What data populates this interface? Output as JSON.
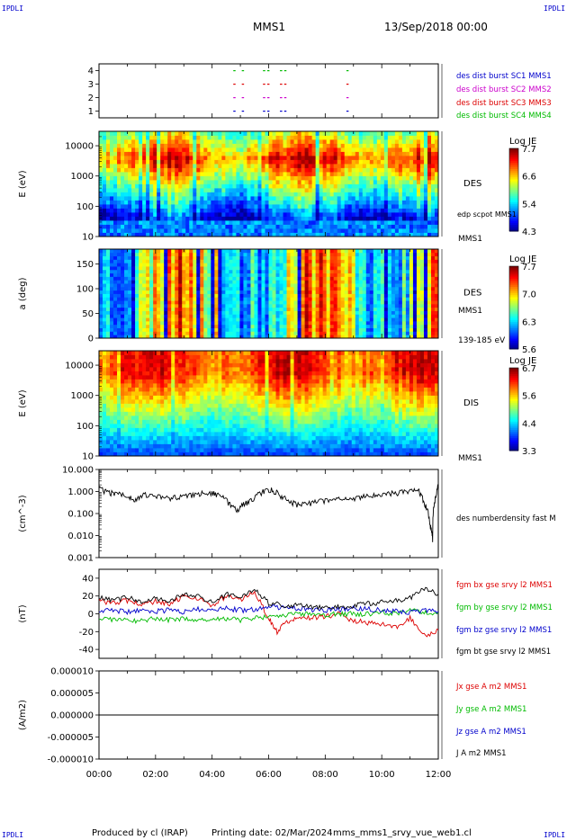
{
  "corner_labels": {
    "top_left": "IPDLI",
    "top_right": "IPDLI",
    "bottom_left": "IPDLI",
    "bottom_right": "IPDLI"
  },
  "header": {
    "spacecraft": "MMS1",
    "date_time": "13/Sep/2018 00:00"
  },
  "footer": {
    "produced_by": "Produced by cl (IRAP)",
    "printing_date": "Printing date: 02/Mar/2024",
    "script_name": "mms_mms1_srvy_vue_web1.cl"
  },
  "time_axis": {
    "ticks": [
      "00:00",
      "02:00",
      "04:00",
      "06:00",
      "08:00",
      "10:00",
      "12:00"
    ]
  },
  "colors": {
    "red": "#dd0000",
    "magenta": "#cc00cc",
    "blue": "#0000cc",
    "green": "#00bb00",
    "black": "#000000"
  },
  "chart_data": [
    {
      "id": "burst",
      "type": "scatter",
      "xlim": [
        0,
        12
      ],
      "ylim": [
        0.5,
        4.5
      ],
      "yticks": [
        "1",
        "2",
        "3",
        "4"
      ],
      "legend": [
        {
          "label": "des dist burst SC1 MMS1",
          "color": "#0000cc"
        },
        {
          "label": "des dist burst SC2 MMS2",
          "color": "#cc00cc"
        },
        {
          "label": "des dist burst SC3 MMS3",
          "color": "#dd0000"
        },
        {
          "label": "des dist burst SC4 MMS4",
          "color": "#00bb00"
        }
      ],
      "points": [
        {
          "x": 4.75,
          "sc": [
            1,
            2,
            3,
            4
          ]
        },
        {
          "x": 5.05,
          "sc": [
            1,
            2,
            3,
            4
          ]
        },
        {
          "x": 5.8,
          "sc": [
            1,
            2,
            3,
            4
          ]
        },
        {
          "x": 5.95,
          "sc": [
            1,
            2,
            3,
            4
          ]
        },
        {
          "x": 6.4,
          "sc": [
            1,
            2,
            3,
            4
          ]
        },
        {
          "x": 6.55,
          "sc": [
            1,
            2,
            3,
            4
          ]
        },
        {
          "x": 8.75,
          "sc": [
            1,
            2,
            3,
            4
          ]
        }
      ]
    },
    {
      "id": "des_energy",
      "type": "heatmap",
      "ylabel": "E (eV)",
      "yscale": "log",
      "ylim": [
        10,
        30000
      ],
      "yticks": [
        "10",
        "100",
        "1000",
        "10000"
      ],
      "label": "DES",
      "extra_labels": [
        "edp scpot MMS1",
        "MMS1"
      ],
      "colorbar": {
        "title": "Log JE",
        "ticks": [
          "7.7",
          "6.6",
          "5.4",
          "4.3"
        ],
        "range": [
          4.3,
          7.7
        ]
      },
      "seed": 11
    },
    {
      "id": "des_pitch",
      "type": "heatmap",
      "ylabel": "a (deg)",
      "ylim": [
        0,
        180
      ],
      "yticks": [
        "0",
        "50",
        "100",
        "150"
      ],
      "label": "DES",
      "extra_labels": [
        "MMS1",
        "139-185 eV"
      ],
      "colorbar": {
        "title": "Log JE",
        "ticks": [
          "7.7",
          "7.0",
          "6.3",
          "5.6"
        ],
        "range": [
          5.6,
          7.7
        ]
      },
      "seed": 23
    },
    {
      "id": "dis_energy",
      "type": "heatmap",
      "ylabel": "E (eV)",
      "yscale": "log",
      "ylim": [
        10,
        30000
      ],
      "yticks": [
        "10",
        "100",
        "1000",
        "10000"
      ],
      "label": "DIS",
      "extra_labels": [
        "MMS1"
      ],
      "colorbar": {
        "title": "Log JE",
        "ticks": [
          "6.7",
          "5.6",
          "4.4",
          "3.3"
        ],
        "range": [
          3.3,
          6.7
        ]
      },
      "seed": 37
    },
    {
      "id": "density",
      "type": "line",
      "ylabel": "(cm^-3)",
      "yscale": "log",
      "ylim": [
        0.001,
        10
      ],
      "yticks": [
        "0.001",
        "0.010",
        "0.100",
        "1.000",
        "10.000"
      ],
      "legend": [
        {
          "label": "des numberdensity fast M",
          "color": "#000000"
        }
      ],
      "series": [
        {
          "name": "des numberdensity fast M",
          "color": "#000000",
          "x": [
            0,
            0.3,
            0.6,
            1.0,
            1.3,
            1.6,
            2.0,
            2.4,
            2.8,
            3.2,
            3.6,
            4.0,
            4.3,
            4.6,
            4.9,
            5.2,
            5.5,
            5.8,
            6.1,
            6.4,
            6.7,
            7.0,
            7.4,
            7.8,
            8.2,
            8.6,
            9.0,
            9.4,
            9.8,
            10.2,
            10.6,
            11.0,
            11.3,
            11.5,
            11.7,
            11.8,
            11.9,
            12.0
          ],
          "y": [
            1.4,
            0.9,
            0.8,
            0.6,
            0.45,
            0.7,
            0.6,
            0.5,
            0.55,
            0.7,
            0.8,
            0.9,
            0.6,
            0.3,
            0.15,
            0.3,
            0.5,
            1.0,
            1.2,
            0.7,
            0.35,
            0.27,
            0.3,
            0.35,
            0.4,
            0.45,
            0.5,
            0.6,
            0.7,
            0.8,
            0.9,
            1.0,
            1.1,
            0.3,
            0.03,
            0.006,
            0.5,
            2.0
          ]
        }
      ]
    },
    {
      "id": "magnetic_field",
      "type": "line",
      "ylabel": "(nT)",
      "ylim": [
        -50,
        50
      ],
      "yticks": [
        "-40",
        "-20",
        "0",
        "20",
        "40"
      ],
      "legend": [
        {
          "label": "fgm bx gse srvy l2 MMS1",
          "color": "#dd0000"
        },
        {
          "label": "fgm by gse srvy l2 MMS1",
          "color": "#00bb00"
        },
        {
          "label": "fgm bz gse srvy l2 MMS1",
          "color": "#0000cc"
        },
        {
          "label": "fgm bt gse srvy l2 MMS1",
          "color": "#000000"
        }
      ],
      "series": [
        {
          "name": "fgm bx gse srvy l2 MMS1",
          "color": "#dd0000",
          "x": [
            0,
            0.5,
            1.0,
            1.5,
            2.0,
            2.5,
            3.0,
            3.5,
            4.0,
            4.5,
            5.0,
            5.5,
            6.0,
            6.3,
            6.6,
            7.0,
            7.5,
            8.0,
            8.5,
            9.0,
            9.5,
            10.0,
            10.5,
            11.0,
            11.5,
            12.0
          ],
          "y": [
            15,
            12,
            15,
            10,
            14,
            10,
            20,
            18,
            8,
            20,
            15,
            25,
            -5,
            -20,
            -10,
            -5,
            -5,
            -3,
            0,
            -8,
            -10,
            -12,
            -15,
            -5,
            -25,
            -18
          ]
        },
        {
          "name": "fgm by gse srvy l2 MMS1",
          "color": "#00bb00",
          "x": [
            0,
            0.5,
            1.0,
            1.5,
            2.0,
            2.5,
            3.0,
            3.5,
            4.0,
            4.5,
            5.0,
            5.5,
            6.0,
            6.5,
            7.0,
            7.5,
            8.0,
            8.5,
            9.0,
            9.5,
            10.0,
            10.5,
            11.0,
            11.5,
            12.0
          ],
          "y": [
            -5,
            -6,
            -8,
            -7,
            -6,
            -7,
            -5,
            -8,
            -5,
            -6,
            -7,
            -5,
            -3,
            -2,
            0,
            0,
            -1,
            0,
            0,
            0,
            2,
            0,
            3,
            2,
            1
          ]
        },
        {
          "name": "fgm bz gse srvy l2 MMS1",
          "color": "#0000cc",
          "x": [
            0,
            0.5,
            1.0,
            1.5,
            2.0,
            2.5,
            3.0,
            3.5,
            4.0,
            4.5,
            5.0,
            5.5,
            6.0,
            6.5,
            7.0,
            7.5,
            8.0,
            8.5,
            9.0,
            9.5,
            10.0,
            10.5,
            11.0,
            11.5,
            12.0
          ],
          "y": [
            3,
            4,
            2,
            5,
            3,
            4,
            2,
            5,
            3,
            6,
            4,
            5,
            8,
            7,
            6,
            5,
            4,
            5,
            6,
            5,
            4,
            3,
            2,
            4,
            3
          ]
        },
        {
          "name": "fgm bt gse srvy l2 MMS1",
          "color": "#000000",
          "x": [
            0,
            0.5,
            1.0,
            1.5,
            2.0,
            2.5,
            3.0,
            3.5,
            4.0,
            4.5,
            5.0,
            5.5,
            6.0,
            6.5,
            7.0,
            7.5,
            8.0,
            8.5,
            9.0,
            9.5,
            10.0,
            10.5,
            11.0,
            11.5,
            12.0
          ],
          "y": [
            18,
            16,
            18,
            14,
            17,
            15,
            22,
            20,
            12,
            22,
            18,
            28,
            12,
            10,
            9,
            8,
            7,
            8,
            9,
            11,
            13,
            15,
            18,
            28,
            22
          ]
        }
      ]
    },
    {
      "id": "current_density",
      "type": "line",
      "ylabel": "(A/m2)",
      "ylim": [
        -1e-05,
        1e-05
      ],
      "yticks": [
        "-0.000010",
        "-0.000005",
        "0.000000",
        "0.000005",
        "0.000010"
      ],
      "legend": [
        {
          "label": "Jx gse A m2 MMS1",
          "color": "#dd0000"
        },
        {
          "label": "Jy gse A m2 MMS1",
          "color": "#00bb00"
        },
        {
          "label": "Jz gse A m2 MMS1",
          "color": "#0000cc"
        },
        {
          "label": "J A m2 MMS1",
          "color": "#000000"
        }
      ],
      "series": [
        {
          "name": "J A m2 MMS1",
          "color": "#000000",
          "x": [
            0,
            12
          ],
          "y": [
            0,
            0
          ]
        }
      ]
    }
  ]
}
